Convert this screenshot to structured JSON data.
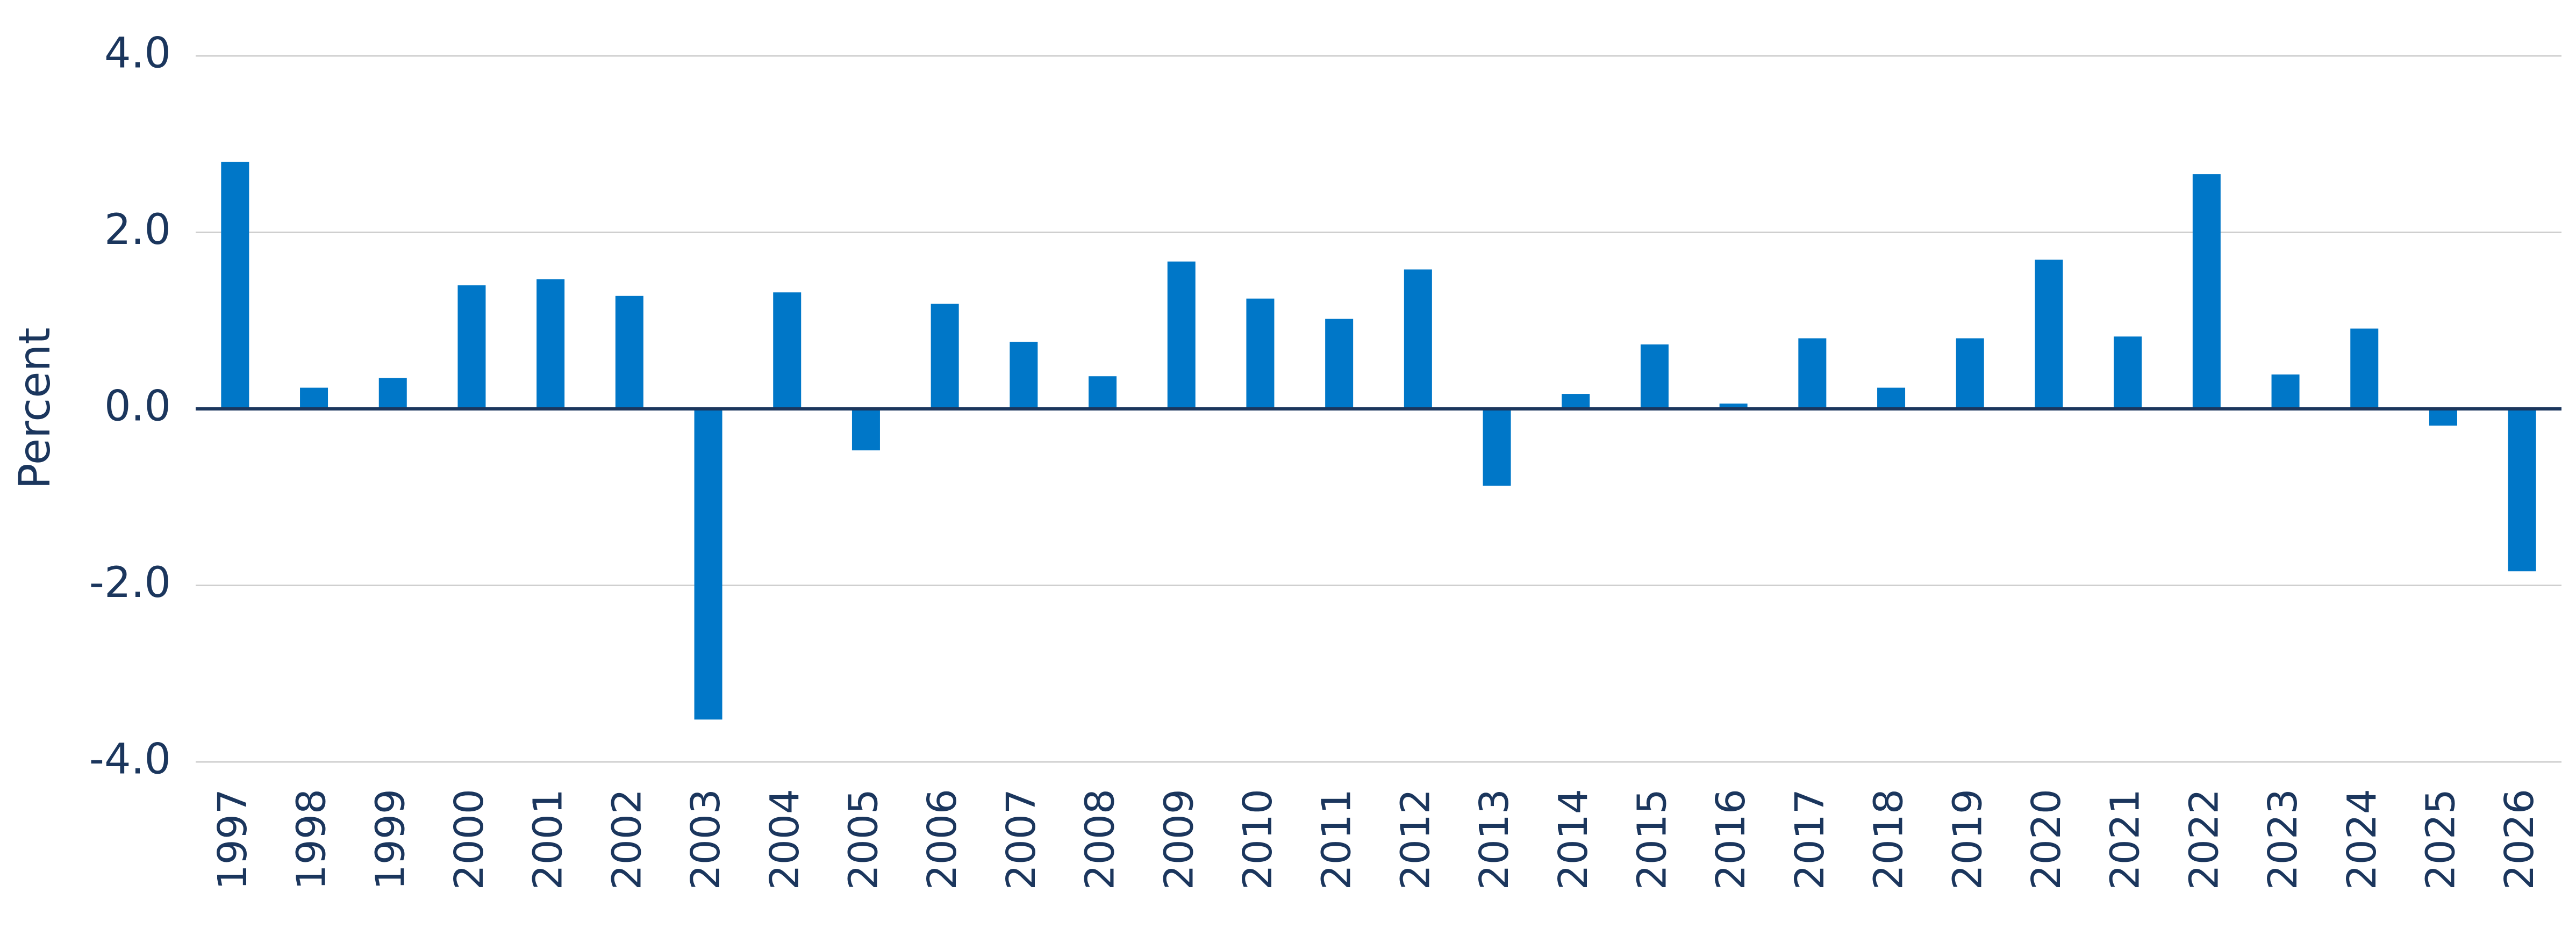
{
  "chart_data": {
    "type": "bar",
    "y_label": "Percent",
    "categories": [
      "1997",
      "1998",
      "1999",
      "2000",
      "2001",
      "2002",
      "2003",
      "2004",
      "2005",
      "2006",
      "2007",
      "2008",
      "2009",
      "2010",
      "2011",
      "2012",
      "2013",
      "2014",
      "2015",
      "2016",
      "2017",
      "2018",
      "2019",
      "2020",
      "2021",
      "2022",
      "2023",
      "2024",
      "2025",
      "2026"
    ],
    "values": [
      2.8,
      0.24,
      0.35,
      1.4,
      1.47,
      1.28,
      -3.52,
      1.32,
      -0.47,
      1.19,
      0.76,
      0.37,
      1.67,
      1.25,
      1.02,
      1.58,
      -0.87,
      0.17,
      0.73,
      0.06,
      0.8,
      0.24,
      0.8,
      1.69,
      0.82,
      2.66,
      0.39,
      0.91,
      -0.19,
      -1.84
    ],
    "color": "#0077c8",
    "ylim": [
      -4,
      4
    ],
    "yticks": [
      {
        "value": -4,
        "label": "-4.0"
      },
      {
        "value": -2,
        "label": "-2.0"
      },
      {
        "value": 0,
        "label": "0.0"
      },
      {
        "value": 2,
        "label": "2.0"
      },
      {
        "value": 4,
        "label": "4.0"
      }
    ],
    "grid": true
  }
}
